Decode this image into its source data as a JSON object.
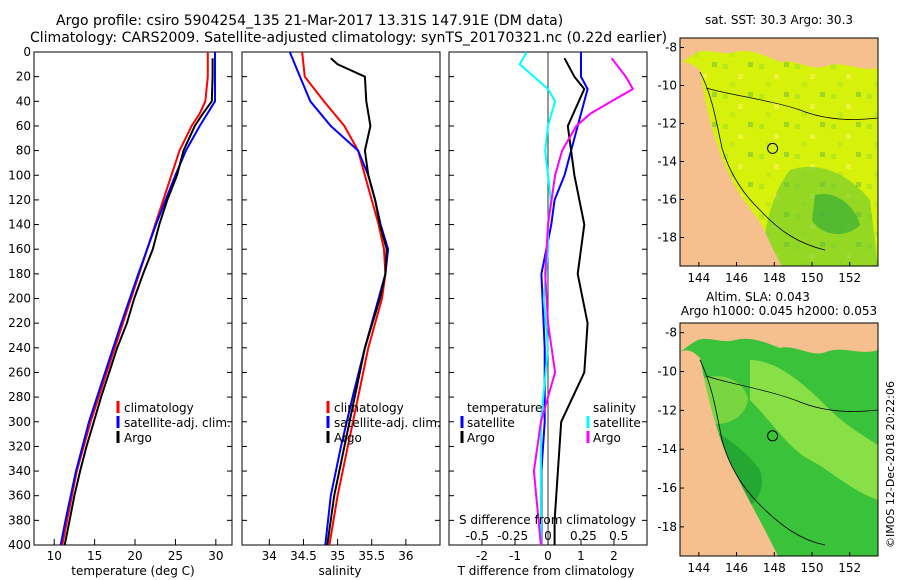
{
  "figure": {
    "title_line1": "Argo profile: csiro 5904254_135 21-Mar-2017 13.31S 147.91E (DM data)",
    "title_line2": "Climatology: CARS2009. Satellite-adjusted climatology: synTS_20170321.nc (0.22d earlier)",
    "credit": "©IMOS 12-Dec-2018 20:22:06"
  },
  "colors": {
    "climatology": "#ff0000",
    "satellite": "#0000ff",
    "argo": "#000000",
    "sat_salinity": "#00ffff",
    "argo_salinity": "#ff00ff",
    "land": "#f5c08e",
    "sst_field": "#d7f20a",
    "sla_field": "#3ac23a"
  },
  "depth_axis": {
    "range": [
      0,
      400
    ],
    "ticks": [
      "0",
      "20",
      "40",
      "60",
      "80",
      "100",
      "120",
      "140",
      "160",
      "180",
      "200",
      "220",
      "240",
      "260",
      "280",
      "300",
      "320",
      "340",
      "360",
      "380",
      "400"
    ]
  },
  "chart_data": [
    {
      "type": "line",
      "name": "temperature",
      "xlabel": "temperature (deg C)",
      "xlim": [
        7.5,
        32
      ],
      "xticks": [
        "10",
        "15",
        "20",
        "25",
        "30"
      ],
      "legend": [
        "climatology",
        "satellite-adj. clim.",
        "Argo"
      ],
      "legend_position": "lower-right",
      "series": [
        {
          "name": "climatology",
          "color": "#ff0000",
          "depth": [
            0,
            20,
            40,
            50,
            60,
            80,
            100,
            140,
            180,
            220,
            260,
            300,
            340,
            380,
            400
          ],
          "values": [
            29.0,
            29.0,
            28.7,
            28.0,
            27.0,
            25.5,
            24.5,
            22.5,
            20.5,
            18.5,
            16.5,
            14.5,
            12.8,
            11.6,
            11.0
          ]
        },
        {
          "name": "satellite-adj. clim.",
          "color": "#0000ff",
          "depth": [
            0,
            20,
            40,
            60,
            80,
            100,
            140,
            180,
            220,
            260,
            300,
            340,
            380,
            400
          ],
          "values": [
            29.9,
            29.9,
            29.9,
            28.0,
            26.3,
            25.0,
            22.6,
            20.4,
            18.3,
            16.3,
            14.3,
            12.7,
            11.4,
            10.8
          ]
        },
        {
          "name": "Argo",
          "color": "#000000",
          "depth": [
            5,
            20,
            40,
            50,
            60,
            80,
            90,
            100,
            120,
            140,
            160,
            180,
            200,
            220,
            240,
            260,
            280,
            300,
            320,
            340,
            360,
            380,
            400
          ],
          "values": [
            29.6,
            29.6,
            29.5,
            28.4,
            27.4,
            26.0,
            25.6,
            25.2,
            24.0,
            23.0,
            22.2,
            21.0,
            19.9,
            19.0,
            17.8,
            16.8,
            15.8,
            14.9,
            14.0,
            13.2,
            12.5,
            11.9,
            11.3
          ]
        }
      ]
    },
    {
      "type": "line",
      "name": "salinity",
      "xlabel": "salinity",
      "xlim": [
        33.6,
        36.5
      ],
      "xticks": [
        "34",
        "34.5",
        "35",
        "35.5",
        "36"
      ],
      "legend": [
        "climatology",
        "satellite-adj. clim.",
        "Argo"
      ],
      "legend_position": "lower-right",
      "series": [
        {
          "name": "climatology",
          "color": "#ff0000",
          "depth": [
            0,
            20,
            40,
            60,
            80,
            100,
            120,
            140,
            160,
            180,
            200,
            240,
            280,
            320,
            360,
            400
          ],
          "values": [
            34.48,
            34.52,
            34.8,
            35.1,
            35.3,
            35.4,
            35.5,
            35.6,
            35.68,
            35.7,
            35.65,
            35.45,
            35.3,
            35.15,
            35.0,
            34.88
          ]
        },
        {
          "name": "satellite-adj. clim.",
          "color": "#0000ff",
          "depth": [
            0,
            20,
            40,
            60,
            80,
            100,
            120,
            140,
            160,
            180,
            200,
            240,
            280,
            320,
            360,
            400
          ],
          "values": [
            34.3,
            34.45,
            34.6,
            34.9,
            35.3,
            35.45,
            35.55,
            35.63,
            35.74,
            35.7,
            35.6,
            35.4,
            35.22,
            35.05,
            34.9,
            34.82
          ]
        },
        {
          "name": "Argo",
          "color": "#000000",
          "depth": [
            5,
            10,
            20,
            40,
            60,
            80,
            100,
            120,
            140,
            160,
            180,
            200,
            240,
            280,
            320,
            360,
            400
          ],
          "values": [
            34.9,
            35.0,
            35.4,
            35.42,
            35.48,
            35.4,
            35.45,
            35.55,
            35.62,
            35.72,
            35.7,
            35.62,
            35.4,
            35.25,
            35.1,
            34.95,
            34.85
          ]
        }
      ]
    },
    {
      "type": "line",
      "name": "difference",
      "xlabel": "T difference from climatology",
      "xlabel_top": "S difference from climatology",
      "xlim": [
        -3,
        3
      ],
      "xticks": [
        "-2",
        "-1",
        "0",
        "1",
        "2"
      ],
      "xlim_salinity": [
        -0.7,
        0.7
      ],
      "xticks_salinity": [
        "-0.5",
        "-0.25",
        "0",
        "0.25",
        "0.5"
      ],
      "legend_header_temperature": "temperature",
      "legend_header_salinity": "salinity",
      "legend_temperature": [
        "satellite",
        "Argo"
      ],
      "legend_salinity": [
        "satellite",
        "Argo"
      ],
      "series": [
        {
          "name": "temperature satellite",
          "color": "#0000ff",
          "depth": [
            0,
            20,
            30,
            60,
            100,
            120,
            140,
            180,
            240,
            300,
            340,
            400
          ],
          "values": [
            1.0,
            1.0,
            1.2,
            0.9,
            0.5,
            0.2,
            0.1,
            -0.2,
            -0.1,
            -0.1,
            -0.2,
            -0.2
          ]
        },
        {
          "name": "temperature Argo",
          "color": "#000000",
          "depth": [
            5,
            20,
            30,
            60,
            80,
            100,
            140,
            180,
            220,
            260,
            300,
            340,
            380,
            400
          ],
          "values": [
            0.5,
            0.8,
            1.1,
            0.6,
            0.7,
            0.8,
            1.1,
            0.9,
            1.2,
            1.1,
            0.4,
            0.3,
            0.2,
            0.2
          ]
        },
        {
          "name": "salinity satellite",
          "color": "#00ffff",
          "depth": [
            0,
            10,
            20,
            30,
            40,
            60,
            80,
            100,
            120,
            140,
            160,
            200,
            240,
            300,
            400
          ],
          "values": [
            -0.15,
            -0.2,
            -0.1,
            0.0,
            0.05,
            0.0,
            -0.02,
            0.0,
            0.02,
            0.0,
            0.0,
            -0.03,
            0.0,
            -0.05,
            -0.05
          ]
        },
        {
          "name": "salinity Argo",
          "color": "#ff00ff",
          "depth": [
            5,
            20,
            30,
            40,
            50,
            60,
            80,
            100,
            140,
            180,
            220,
            260,
            300,
            340,
            400
          ],
          "values": [
            0.45,
            0.55,
            0.6,
            0.45,
            0.3,
            0.2,
            0.1,
            0.05,
            0.0,
            -0.02,
            0.0,
            0.05,
            -0.05,
            -0.1,
            -0.05
          ]
        }
      ]
    },
    {
      "type": "heatmap",
      "name": "sst map",
      "title": "sat. SST: 30.3 Argo: 30.3",
      "xlim": [
        143,
        153.5
      ],
      "ylim": [
        -19.5,
        -7.5
      ],
      "xticks": [
        "144",
        "146",
        "148",
        "150",
        "152"
      ],
      "yticks": [
        "-8",
        "-10",
        "-12",
        "-14",
        "-16",
        "-18"
      ],
      "profile_lon": 147.91,
      "profile_lat": -13.31
    },
    {
      "type": "heatmap",
      "name": "sla map",
      "title_line1": "Altim. SLA: 0.043",
      "title_line2": "Argo h1000: 0.045 h2000: 0.053",
      "xlim": [
        143,
        153.5
      ],
      "ylim": [
        -19.5,
        -7.5
      ],
      "xticks": [
        "144",
        "146",
        "148",
        "150",
        "152"
      ],
      "yticks": [
        "-8",
        "-10",
        "-12",
        "-14",
        "-16",
        "-18"
      ],
      "profile_lon": 147.91,
      "profile_lat": -13.31
    }
  ]
}
